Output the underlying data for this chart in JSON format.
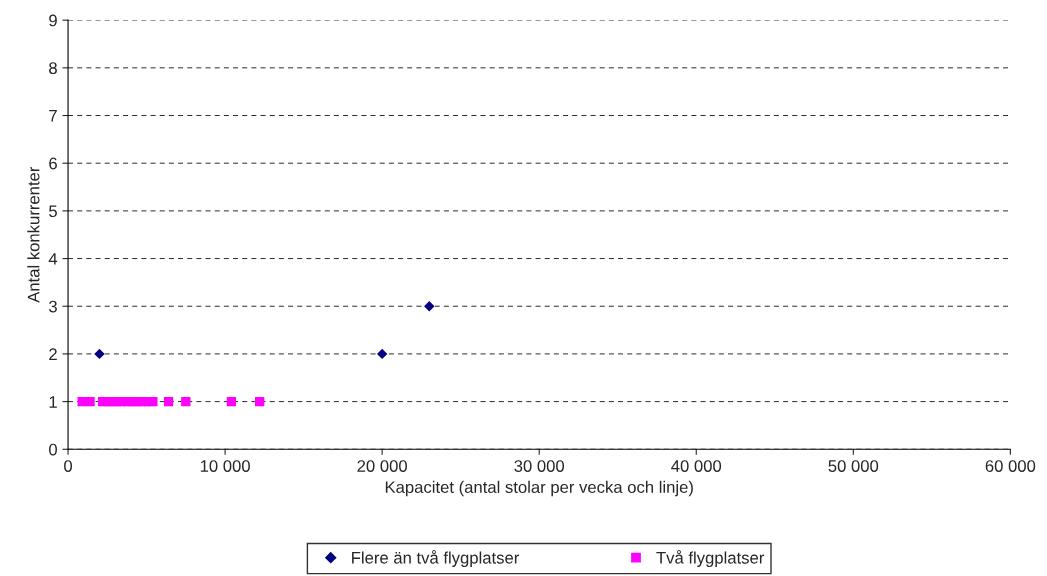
{
  "chart_data": {
    "type": "scatter",
    "xlabel": "Kapacitet (antal stolar per vecka och linje)",
    "ylabel": "Antal konkurrenter",
    "xlim": [
      0,
      60000
    ],
    "xticks": [
      0,
      {
        "value": 10000,
        "label": "10 000"
      },
      {
        "value": 20000,
        "label": "20 000"
      },
      {
        "value": 30000,
        "label": "30 000"
      },
      {
        "value": 40000,
        "label": "40 000"
      },
      {
        "value": 50000,
        "label": "50 000"
      },
      {
        "value": 60000,
        "label": "60 000"
      }
    ],
    "ylim": [
      0,
      9
    ],
    "yticks": [
      0,
      1,
      2,
      3,
      4,
      5,
      6,
      7,
      8,
      9
    ],
    "grid": "y",
    "legend": "bottom",
    "series": [
      {
        "name": "Flere än två flygplatser",
        "color": "#000080",
        "marker": "diamond",
        "x": [
          2000,
          20000,
          23000
        ],
        "values": [
          2,
          2,
          3
        ]
      },
      {
        "name": "Två flygplatser",
        "color": "#ff00ff",
        "marker": "square",
        "x": [
          900,
          1400,
          2200,
          2500,
          2800,
          3100,
          3400,
          3800,
          4100,
          4400,
          4700,
          5100,
          5400,
          6400,
          7500,
          10400,
          12200
        ],
        "values": [
          1,
          1,
          1,
          1,
          1,
          1,
          1,
          1,
          1,
          1,
          1,
          1,
          1,
          1,
          1,
          1,
          1
        ]
      }
    ]
  }
}
